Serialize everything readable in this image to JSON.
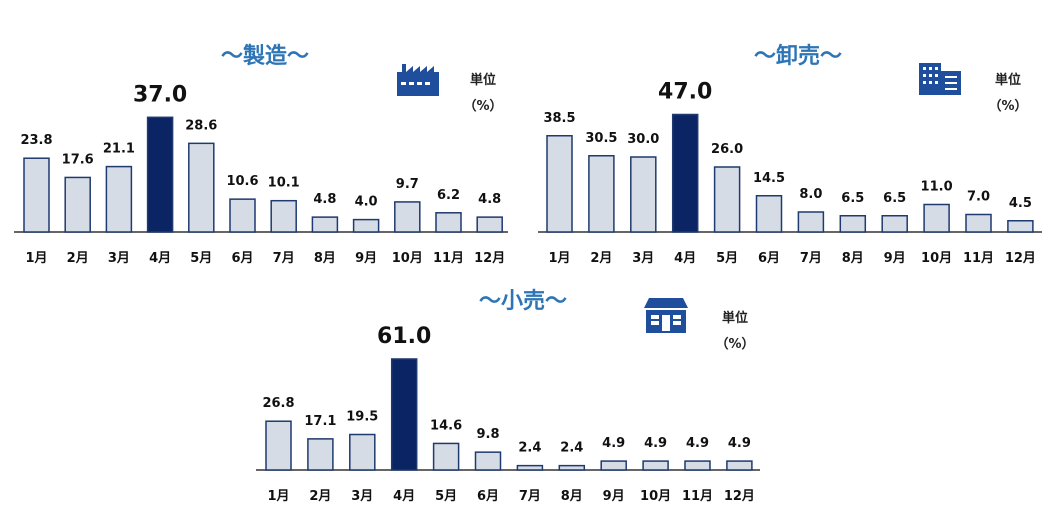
{
  "colors": {
    "bar_fill": "#d6dce6",
    "bar_stroke": "#1f3a6e",
    "highlight": "#0b2463",
    "title": "#2e75b6",
    "icon": "#1f4e9c"
  },
  "chart_data": [
    {
      "type": "bar",
      "title": "～製造～",
      "unit_label": "単位",
      "unit_value": "（%）",
      "icon": "factory-icon",
      "categories": [
        "1月",
        "2月",
        "3月",
        "4月",
        "5月",
        "6月",
        "7月",
        "8月",
        "9月",
        "10月",
        "11月",
        "12月"
      ],
      "values": [
        23.8,
        17.6,
        21.1,
        37.0,
        28.6,
        10.6,
        10.1,
        4.8,
        4.0,
        9.7,
        6.2,
        4.8
      ],
      "labels": [
        "23.8",
        "17.6",
        "21.1",
        "37.0",
        "28.6",
        "10.6",
        "10.1",
        "4.8",
        "4.0",
        "9.7",
        "6.2",
        "4.8"
      ],
      "highlight_index": 3
    },
    {
      "type": "bar",
      "title": "～卸売～",
      "unit_label": "単位",
      "unit_value": "（%）",
      "icon": "office-building-icon",
      "categories": [
        "1月",
        "2月",
        "3月",
        "4月",
        "5月",
        "6月",
        "7月",
        "8月",
        "9月",
        "10月",
        "11月",
        "12月"
      ],
      "values": [
        38.5,
        30.5,
        30.0,
        47.0,
        26.0,
        14.5,
        8.0,
        6.5,
        6.5,
        11.0,
        7.0,
        4.5
      ],
      "labels": [
        "38.5",
        "30.5",
        "30.0",
        "47.0",
        "26.0",
        "14.5",
        "8.0",
        "6.5",
        "6.5",
        "11.0",
        "7.0",
        "4.5"
      ],
      "highlight_index": 3
    },
    {
      "type": "bar",
      "title": "～小売～",
      "unit_label": "単位",
      "unit_value": "（%）",
      "icon": "store-icon",
      "categories": [
        "1月",
        "2月",
        "3月",
        "4月",
        "5月",
        "6月",
        "7月",
        "8月",
        "9月",
        "10月",
        "11月",
        "12月"
      ],
      "values": [
        26.8,
        17.1,
        19.5,
        61.0,
        14.6,
        9.8,
        2.4,
        2.4,
        4.9,
        4.9,
        4.9,
        4.9
      ],
      "labels": [
        "26.8",
        "17.1",
        "19.5",
        "61.0",
        "14.6",
        "9.8",
        "2.4",
        "2.4",
        "4.9",
        "4.9",
        "4.9",
        "4.9"
      ],
      "highlight_index": 3
    }
  ]
}
